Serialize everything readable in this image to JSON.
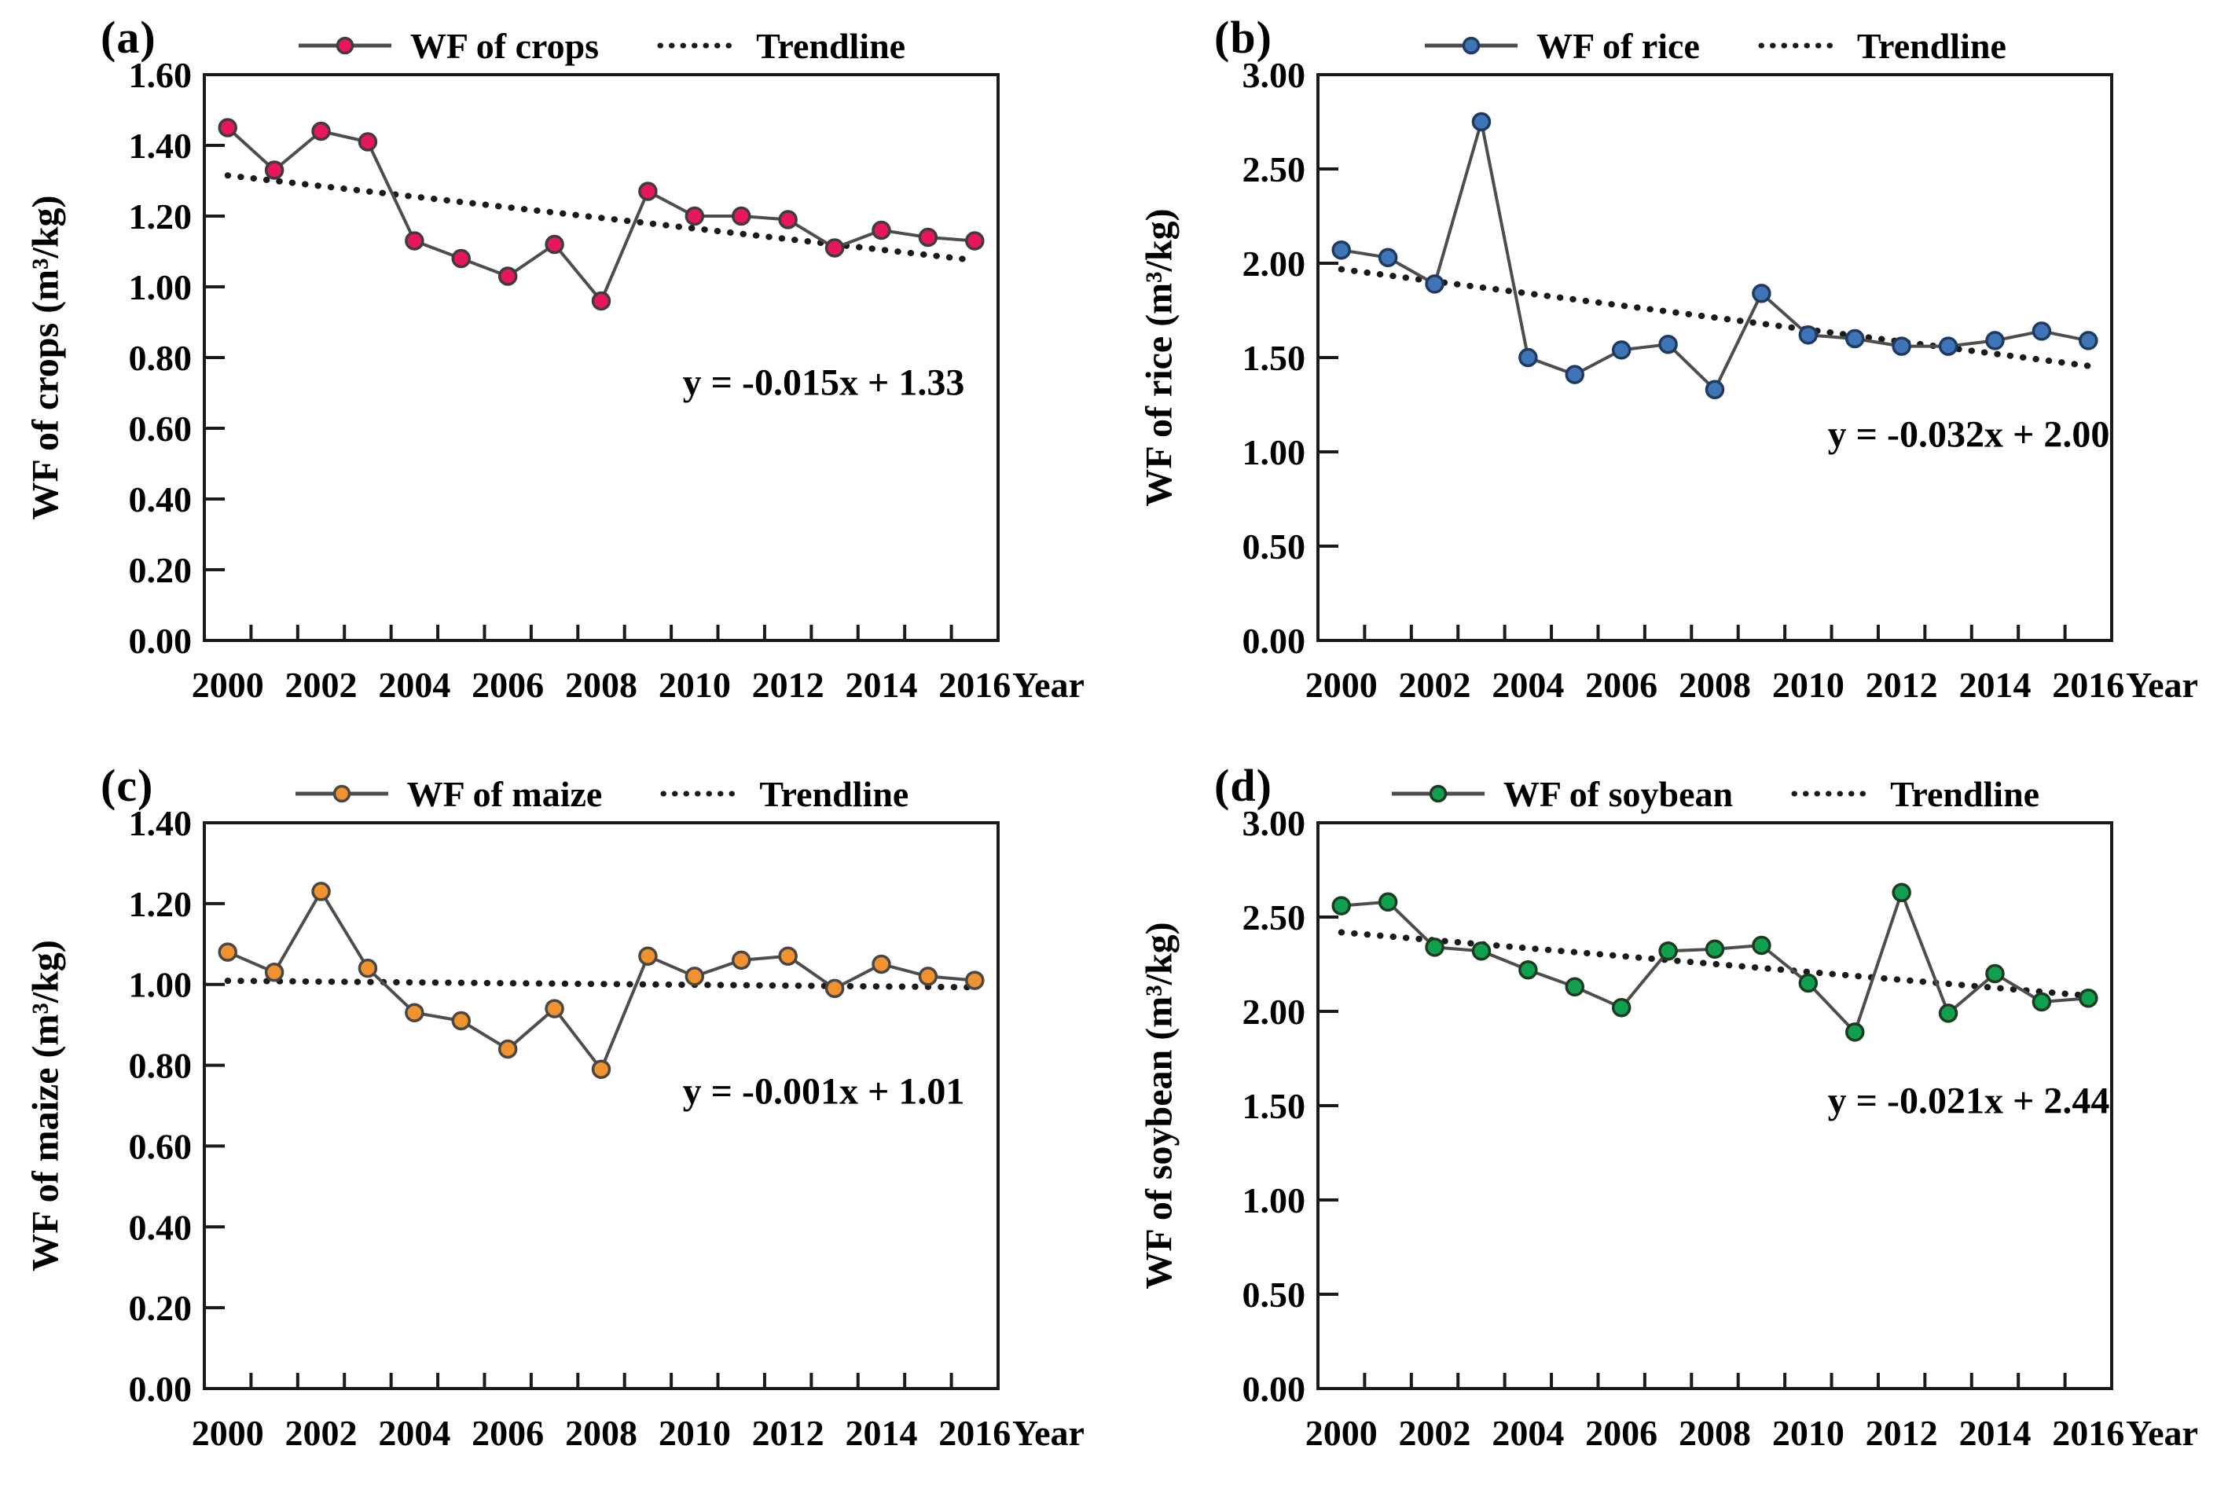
{
  "figure_title": "",
  "chart_data": [
    {
      "type": "line",
      "panel_label": "(a)",
      "legend": {
        "series": "WF of crops",
        "trend": "Trendline"
      },
      "ylabel": "WF of crops (m³/kg)",
      "xlabel": "Year",
      "x": [
        2000,
        2001,
        2002,
        2003,
        2004,
        2005,
        2006,
        2007,
        2008,
        2009,
        2010,
        2011,
        2012,
        2013,
        2014,
        2015,
        2016
      ],
      "values": [
        1.45,
        1.33,
        1.44,
        1.41,
        1.13,
        1.08,
        1.03,
        1.12,
        0.96,
        1.27,
        1.2,
        1.2,
        1.19,
        1.11,
        1.16,
        1.14,
        1.13
      ],
      "ylim": [
        0.0,
        1.6
      ],
      "ytick_step": 0.2,
      "xtick_label_step": 2,
      "grid": false,
      "legend_position": "top",
      "trendline": {
        "slope": -0.015,
        "intercept": 1.33,
        "equation": "y = -0.015x + 1.33"
      },
      "colors": {
        "marker_fill": "#e8175d",
        "marker_stroke": "#3d3d3d",
        "line": "#4d4d4d",
        "trend": "#1a1a1a"
      }
    },
    {
      "type": "line",
      "panel_label": "(b)",
      "legend": {
        "series": "WF of rice",
        "trend": "Trendline"
      },
      "ylabel": "WF of rice (m³/kg)",
      "xlabel": "Year",
      "x": [
        2000,
        2001,
        2002,
        2003,
        2004,
        2005,
        2006,
        2007,
        2008,
        2009,
        2010,
        2011,
        2012,
        2013,
        2014,
        2015,
        2016
      ],
      "values": [
        2.07,
        2.03,
        1.89,
        2.75,
        1.5,
        1.41,
        1.54,
        1.57,
        1.33,
        1.84,
        1.62,
        1.6,
        1.56,
        1.56,
        1.59,
        1.64,
        1.59
      ],
      "ylim": [
        0.0,
        3.0
      ],
      "ytick_step": 0.5,
      "xtick_label_step": 2,
      "grid": false,
      "legend_position": "top",
      "trendline": {
        "slope": -0.032,
        "intercept": 2.0,
        "equation": "y = -0.032x + 2.00"
      },
      "colors": {
        "marker_fill": "#3f74b6",
        "marker_stroke": "#1f3a5f",
        "line": "#4d4d4d",
        "trend": "#1a1a1a"
      }
    },
    {
      "type": "line",
      "panel_label": "(c)",
      "legend": {
        "series": "WF of maize",
        "trend": "Trendline"
      },
      "ylabel": "WF of maize (m³/kg)",
      "xlabel": "Year",
      "x": [
        2000,
        2001,
        2002,
        2003,
        2004,
        2005,
        2006,
        2007,
        2008,
        2009,
        2010,
        2011,
        2012,
        2013,
        2014,
        2015,
        2016
      ],
      "values": [
        1.08,
        1.03,
        1.23,
        1.04,
        0.93,
        0.91,
        0.84,
        0.94,
        0.79,
        1.07,
        1.02,
        1.06,
        1.07,
        0.99,
        1.05,
        1.02,
        1.01
      ],
      "ylim": [
        0.0,
        1.4
      ],
      "ytick_step": 0.2,
      "xtick_label_step": 2,
      "grid": false,
      "legend_position": "top",
      "trendline": {
        "slope": -0.001,
        "intercept": 1.01,
        "equation": "y = -0.001x + 1.01"
      },
      "colors": {
        "marker_fill": "#f0922d",
        "marker_stroke": "#474747",
        "line": "#4d4d4d",
        "trend": "#1a1a1a"
      }
    },
    {
      "type": "line",
      "panel_label": "(d)",
      "legend": {
        "series": "WF of soybean",
        "trend": "Trendline"
      },
      "ylabel": "WF of soybean (m³/kg)",
      "xlabel": "Year",
      "x": [
        2000,
        2001,
        2002,
        2003,
        2004,
        2005,
        2006,
        2007,
        2008,
        2009,
        2010,
        2011,
        2012,
        2013,
        2014,
        2015,
        2016
      ],
      "values": [
        2.56,
        2.58,
        2.34,
        2.32,
        2.22,
        2.13,
        2.02,
        2.32,
        2.33,
        2.35,
        2.15,
        1.89,
        2.63,
        1.99,
        2.2,
        2.05,
        2.07
      ],
      "ylim": [
        0.0,
        3.0
      ],
      "ytick_step": 0.5,
      "xtick_label_step": 2,
      "grid": false,
      "legend_position": "top",
      "trendline": {
        "slope": -0.021,
        "intercept": 2.44,
        "equation": "y = -0.021x + 2.44"
      },
      "colors": {
        "marker_fill": "#10a14e",
        "marker_stroke": "#1e3a22",
        "line": "#4d4d4d",
        "trend": "#1a1a1a"
      }
    }
  ]
}
